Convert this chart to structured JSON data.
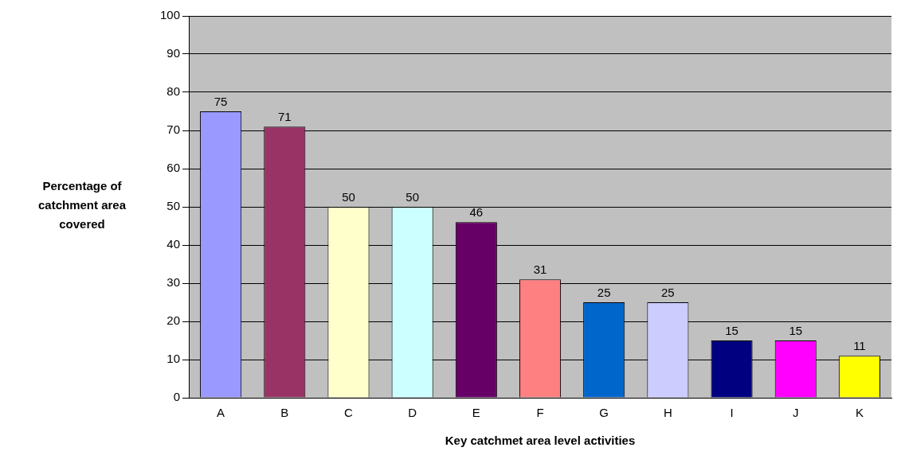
{
  "chart_data": {
    "type": "bar",
    "xlabel": "Key catchmet area level activities",
    "ylabel": "Percentage of catchment area covered",
    "categories": [
      "A",
      "B",
      "C",
      "D",
      "E",
      "F",
      "G",
      "H",
      "I",
      "J",
      "K"
    ],
    "values": [
      75,
      71,
      50,
      50,
      46,
      31,
      25,
      25,
      15,
      15,
      11
    ],
    "colors": [
      "#9999ff",
      "#993366",
      "#ffffcc",
      "#ccffff",
      "#660066",
      "#ff8080",
      "#0066cc",
      "#ccccff",
      "#000080",
      "#ff00ff",
      "#ffff00"
    ],
    "ylim": [
      0,
      100
    ],
    "yticks": [
      0,
      10,
      20,
      30,
      40,
      50,
      60,
      70,
      80,
      90,
      100
    ],
    "grid": "y",
    "data_labels": true,
    "legend": false
  }
}
